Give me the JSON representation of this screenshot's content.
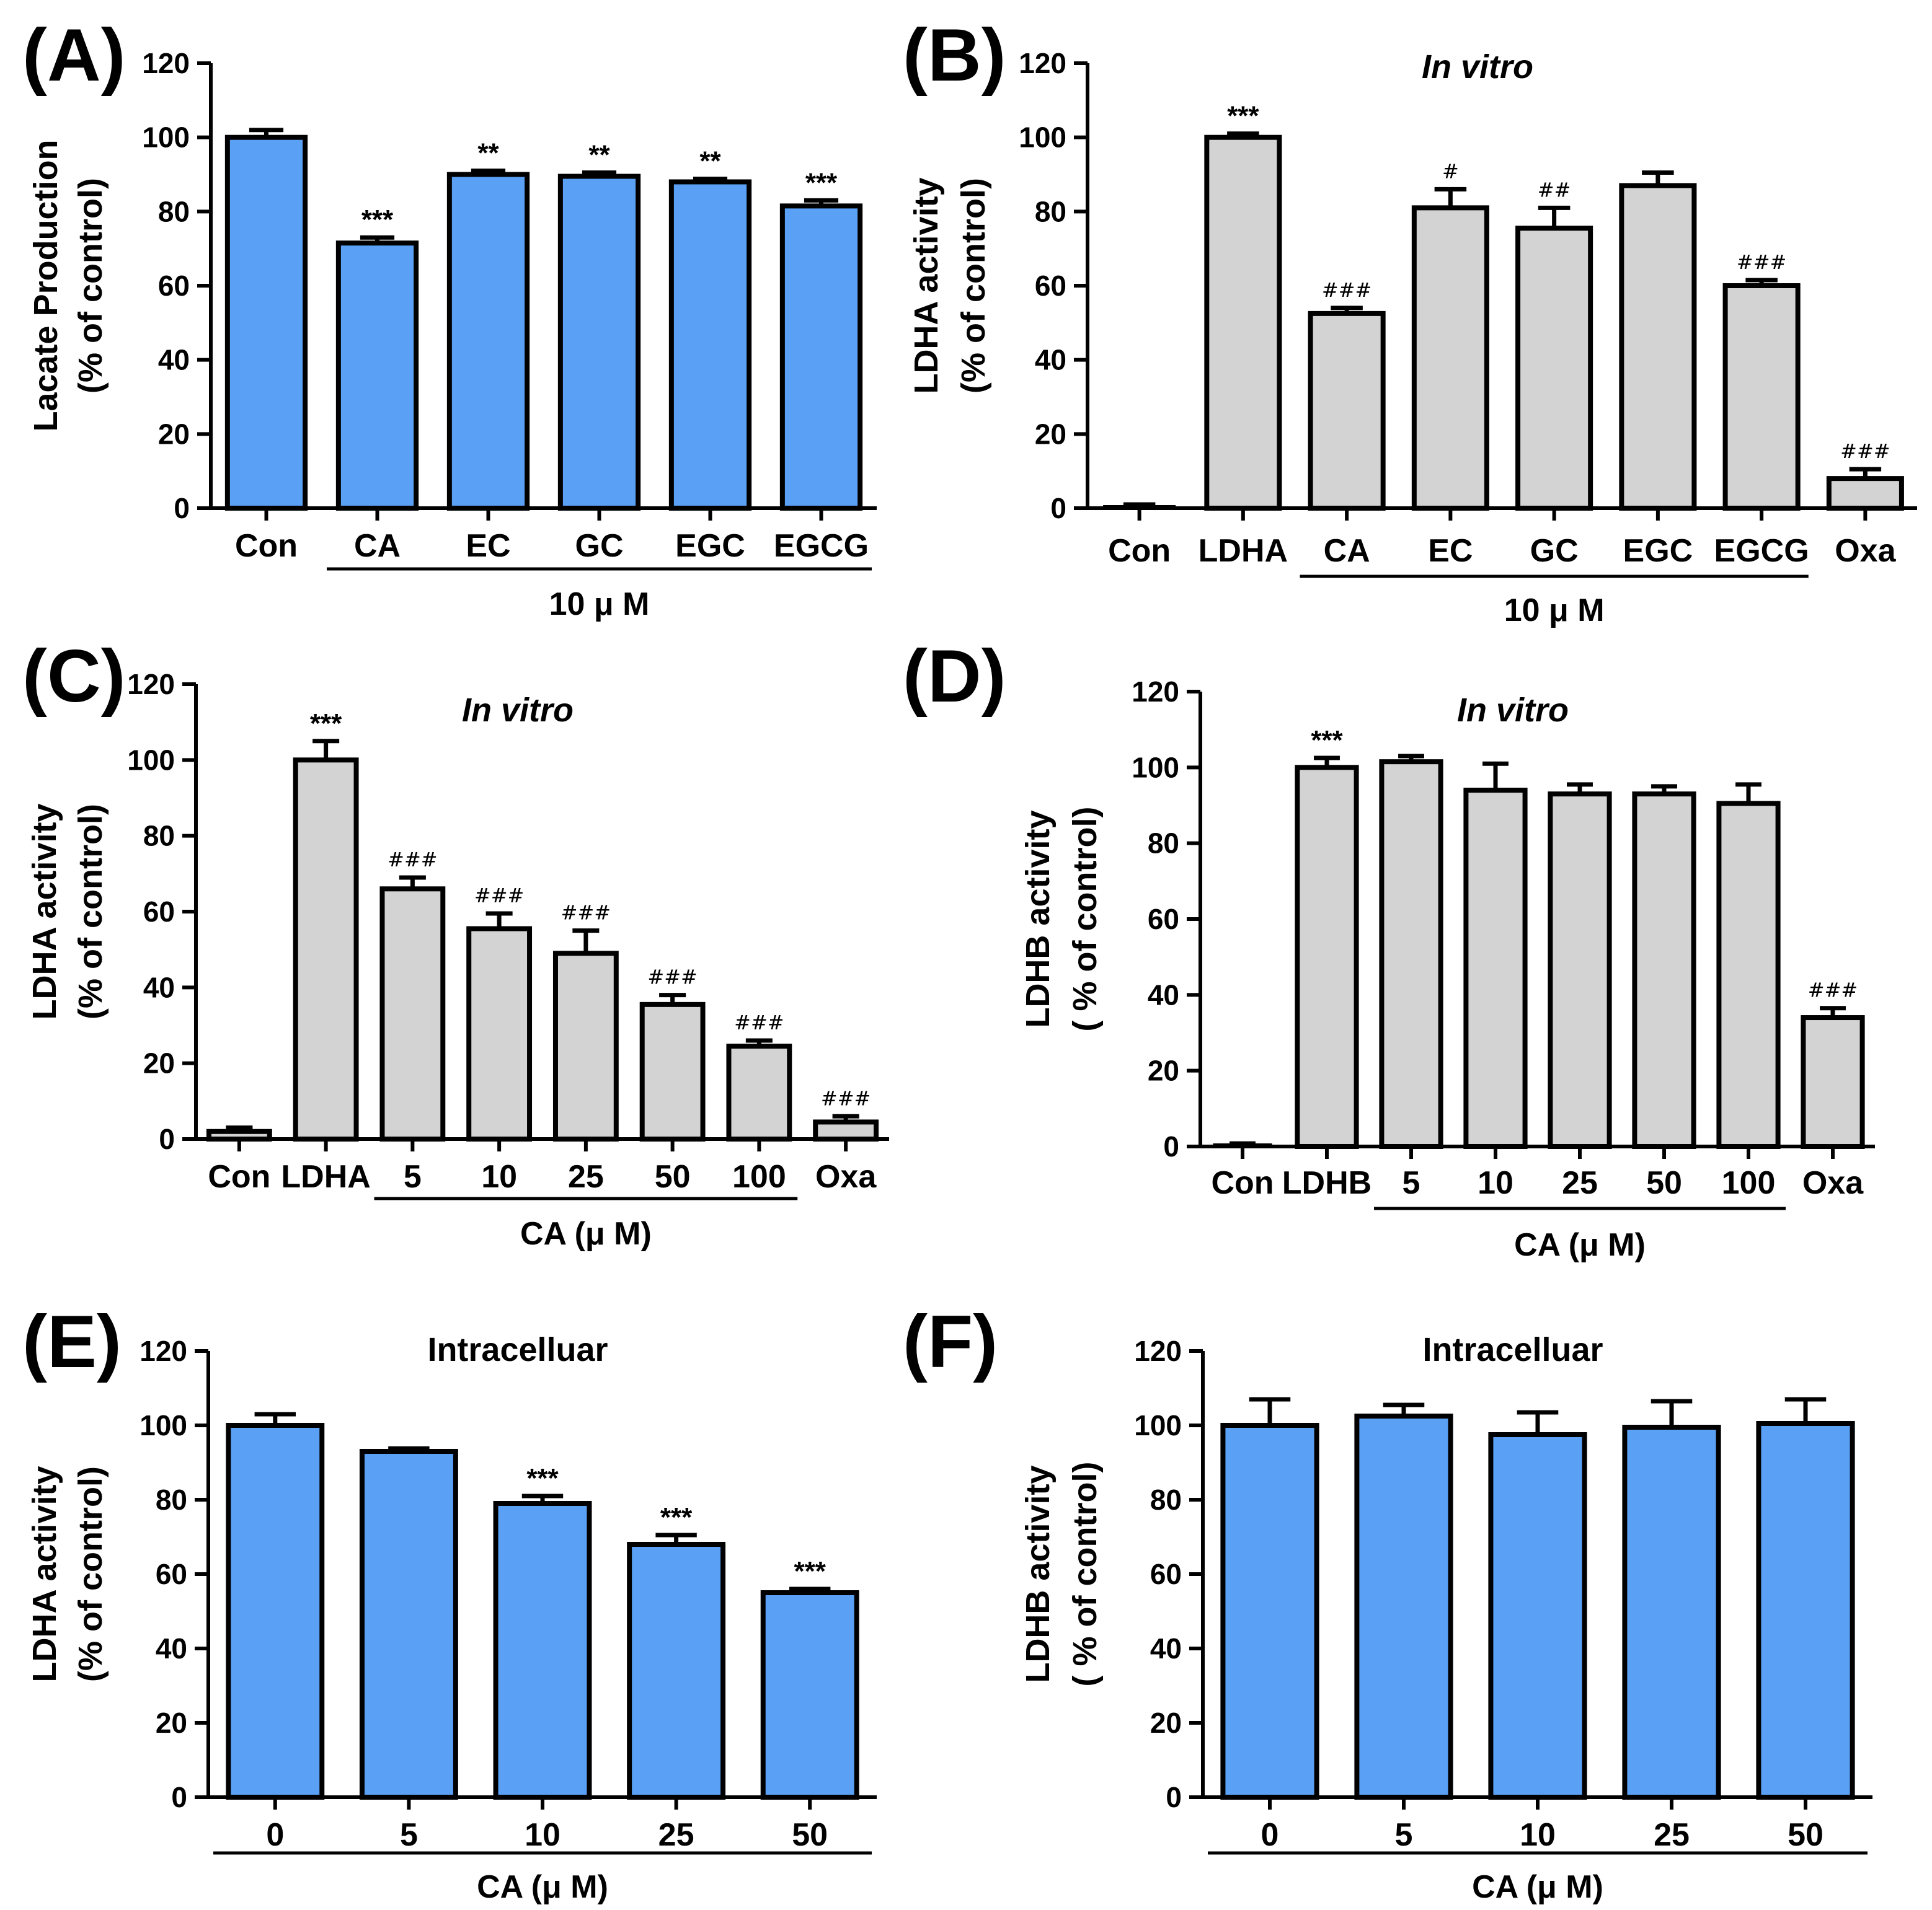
{
  "figure": {
    "panels": [
      "(A)",
      "(B)",
      "(C)",
      "(D)",
      "(E)",
      "(F)"
    ]
  },
  "chart_data": [
    {
      "panel": "(A)",
      "type": "bar",
      "title": "",
      "ylabel": [
        "Lacate Production",
        "(% of control)"
      ],
      "categories": [
        "Con",
        "CA",
        "EC",
        "GC",
        "EGC",
        "EGCG"
      ],
      "values": [
        100,
        71.5,
        90,
        89.5,
        88,
        81.5
      ],
      "errors": [
        2,
        1.5,
        1,
        1,
        0.8,
        1.5
      ],
      "annotations": [
        "",
        "***",
        "**",
        "**",
        "**",
        "***"
      ],
      "group_label": "10 μ M",
      "group_range": [
        1,
        5
      ],
      "ylim": [
        0,
        120
      ],
      "yticks": [
        0,
        20,
        40,
        60,
        80,
        100,
        120
      ],
      "color": "#5aa0f5"
    },
    {
      "panel": "(B)",
      "type": "bar",
      "title": "In vitro",
      "ylabel": [
        "LDHA activity",
        "(% of control)"
      ],
      "categories": [
        "Con",
        "LDHA",
        "CA",
        "EC",
        "GC",
        "EGC",
        "EGCG",
        "Oxa"
      ],
      "values": [
        0.5,
        100,
        52.5,
        81,
        75.5,
        87,
        60,
        8
      ],
      "errors": [
        0.5,
        1,
        1.5,
        5,
        5.5,
        3.5,
        1.5,
        2.5
      ],
      "annotations": [
        "",
        "***",
        "###",
        "#",
        "##",
        "",
        "###",
        "###"
      ],
      "group_label": "10 μ M",
      "group_range": [
        2,
        6
      ],
      "ylim": [
        0,
        120
      ],
      "yticks": [
        0,
        20,
        40,
        60,
        80,
        100,
        120
      ],
      "color": "#d3d3d3"
    },
    {
      "panel": "(C)",
      "type": "bar",
      "title": "In vitro",
      "ylabel": [
        "LDHA activity",
        "(% of control)"
      ],
      "categories": [
        "Con",
        "LDHA",
        "5",
        "10",
        "25",
        "50",
        "100",
        "Oxa"
      ],
      "values": [
        2,
        100,
        66,
        55.5,
        49,
        35.5,
        24.5,
        4.5
      ],
      "errors": [
        1,
        5,
        3,
        4,
        6,
        2.5,
        1.5,
        1.5
      ],
      "annotations": [
        "",
        "***",
        "###",
        "###",
        "###",
        "###",
        "###",
        "###"
      ],
      "group_label": "CA (μ M)",
      "group_range": [
        2,
        6
      ],
      "ylim": [
        0,
        120
      ],
      "yticks": [
        0,
        20,
        40,
        60,
        80,
        100,
        120
      ],
      "color": "#d3d3d3"
    },
    {
      "panel": "(D)",
      "type": "bar",
      "title": "In vitro",
      "ylabel": [
        "LDHB activity",
        "( % of control)"
      ],
      "categories": [
        "Con",
        "LDHB",
        "5",
        "10",
        "25",
        "50",
        "100",
        "Oxa"
      ],
      "values": [
        0.3,
        100,
        101.5,
        94,
        93,
        93,
        90.5,
        34
      ],
      "errors": [
        0.5,
        2.5,
        1.5,
        7,
        2.5,
        2,
        5,
        2.5
      ],
      "annotations": [
        "",
        "***",
        "",
        "",
        "",
        "",
        "",
        "###"
      ],
      "group_label": "CA (μ M)",
      "group_range": [
        2,
        6
      ],
      "ylim": [
        0,
        120
      ],
      "yticks": [
        0,
        20,
        40,
        60,
        80,
        100,
        120
      ],
      "color": "#d3d3d3"
    },
    {
      "panel": "(E)",
      "type": "bar",
      "title": "Intracelluar",
      "ylabel": [
        "LDHA activity",
        "(% of control)"
      ],
      "categories": [
        "0",
        "5",
        "10",
        "25",
        "50"
      ],
      "values": [
        100,
        93,
        79,
        68,
        55
      ],
      "errors": [
        3,
        0.8,
        2,
        2.5,
        1
      ],
      "annotations": [
        "",
        "",
        "***",
        "***",
        "***"
      ],
      "group_label": "CA (μ M)",
      "group_range": [
        0,
        4
      ],
      "ylim": [
        0,
        120
      ],
      "yticks": [
        0,
        20,
        40,
        60,
        80,
        100,
        120
      ],
      "color": "#5aa0f5"
    },
    {
      "panel": "(F)",
      "type": "bar",
      "title": "Intracelluar",
      "ylabel": [
        "LDHB activity",
        "( % of control)"
      ],
      "categories": [
        "0",
        "5",
        "10",
        "25",
        "50"
      ],
      "values": [
        100,
        102.5,
        97.5,
        99.5,
        100.5
      ],
      "errors": [
        7,
        3,
        6,
        7,
        6.5
      ],
      "annotations": [
        "",
        "",
        "",
        "",
        ""
      ],
      "group_label": "CA (μ M)",
      "group_range": [
        0,
        4
      ],
      "ylim": [
        0,
        120
      ],
      "yticks": [
        0,
        20,
        40,
        60,
        80,
        100,
        120
      ],
      "color": "#5aa0f5"
    }
  ]
}
